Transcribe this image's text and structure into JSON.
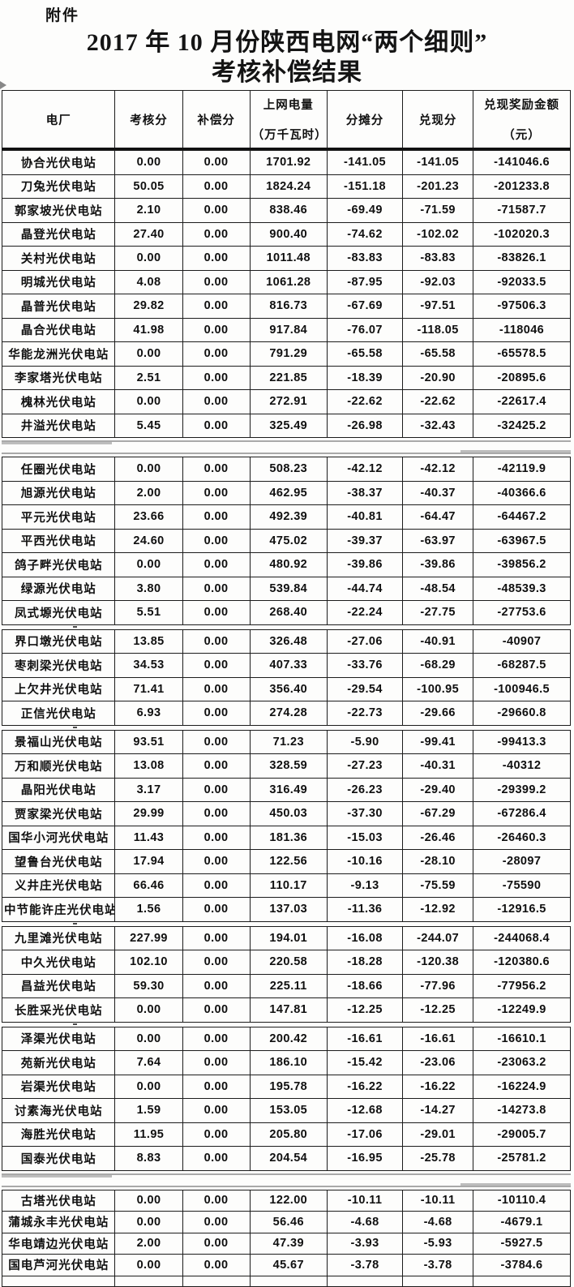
{
  "page": {
    "attachment": "附件",
    "title_line1": "2017 年 10 月份陕西电网“两个细则”",
    "title_line2": "考核补偿结果"
  },
  "table": {
    "headers": [
      {
        "line1": "电厂",
        "line2": ""
      },
      {
        "line1": "考核分",
        "line2": ""
      },
      {
        "line1": "补偿分",
        "line2": ""
      },
      {
        "line1": "上网电量",
        "line2": "（万千瓦时）"
      },
      {
        "line1": "分摊分",
        "line2": ""
      },
      {
        "line1": "兑现分",
        "line2": ""
      },
      {
        "line1": "兑现奖励金额",
        "line2": "（元）"
      }
    ],
    "sections": [
      {
        "break_before": "none",
        "rows": [
          {
            "plant": "协合光伏电站",
            "values": [
              "0.00",
              "0.00",
              "1701.92",
              "-141.05",
              "-141.05",
              "-141046.6"
            ]
          },
          {
            "plant": "刀兔光伏电站",
            "values": [
              "50.05",
              "0.00",
              "1824.24",
              "-151.18",
              "-201.23",
              "-201233.8"
            ]
          },
          {
            "plant": "郭家坡光伏电站",
            "values": [
              "2.10",
              "0.00",
              "838.46",
              "-69.49",
              "-71.59",
              "-71587.7"
            ]
          },
          {
            "plant": "晶登光伏电站",
            "values": [
              "27.40",
              "0.00",
              "900.40",
              "-74.62",
              "-102.02",
              "-102020.3"
            ]
          },
          {
            "plant": "关村光伏电站",
            "values": [
              "0.00",
              "0.00",
              "1011.48",
              "-83.83",
              "-83.83",
              "-83826.1"
            ]
          },
          {
            "plant": "明城光伏电站",
            "values": [
              "4.08",
              "0.00",
              "1061.28",
              "-87.95",
              "-92.03",
              "-92033.5"
            ]
          },
          {
            "plant": "晶普光伏电站",
            "values": [
              "29.82",
              "0.00",
              "816.73",
              "-67.69",
              "-97.51",
              "-97506.3"
            ]
          },
          {
            "plant": "晶合光伏电站",
            "values": [
              "41.98",
              "0.00",
              "917.84",
              "-76.07",
              "-118.05",
              "-118046"
            ]
          },
          {
            "plant": "华能龙洲光伏电站",
            "values": [
              "0.00",
              "0.00",
              "791.29",
              "-65.58",
              "-65.58",
              "-65578.5"
            ]
          },
          {
            "plant": "李家塔光伏电站",
            "values": [
              "2.51",
              "0.00",
              "221.85",
              "-18.39",
              "-20.90",
              "-20895.6"
            ]
          },
          {
            "plant": "槐林光伏电站",
            "values": [
              "0.00",
              "0.00",
              "272.91",
              "-22.62",
              "-22.62",
              "-22617.4"
            ]
          },
          {
            "plant": "井溢光伏电站",
            "values": [
              "5.45",
              "0.00",
              "325.49",
              "-26.98",
              "-32.43",
              "-32425.2"
            ]
          }
        ]
      },
      {
        "break_before": "page",
        "rows": [
          {
            "plant": "任圈光伏电站",
            "values": [
              "0.00",
              "0.00",
              "508.23",
              "-42.12",
              "-42.12",
              "-42119.9"
            ]
          },
          {
            "plant": "旭源光伏电站",
            "values": [
              "2.00",
              "0.00",
              "462.95",
              "-38.37",
              "-40.37",
              "-40366.6"
            ]
          },
          {
            "plant": "平元光伏电站",
            "values": [
              "23.66",
              "0.00",
              "492.39",
              "-40.81",
              "-64.47",
              "-64467.2"
            ]
          },
          {
            "plant": "平西光伏电站",
            "values": [
              "24.60",
              "0.00",
              "475.02",
              "-39.37",
              "-63.97",
              "-63967.5"
            ]
          },
          {
            "plant": "鸽子畔光伏电站",
            "values": [
              "0.00",
              "0.00",
              "480.92",
              "-39.86",
              "-39.86",
              "-39856.2"
            ]
          },
          {
            "plant": "绿源光伏电站",
            "values": [
              "3.80",
              "0.00",
              "539.84",
              "-44.74",
              "-48.54",
              "-48539.3"
            ]
          },
          {
            "plant": "凤式塬光伏电站",
            "values": [
              "5.51",
              "0.00",
              "268.40",
              "-22.24",
              "-27.75",
              "-27753.6"
            ]
          }
        ]
      },
      {
        "break_before": "split",
        "rows": [
          {
            "plant": "界口墩光伏电站",
            "values": [
              "13.85",
              "0.00",
              "326.48",
              "-27.06",
              "-40.91",
              "-40907"
            ]
          },
          {
            "plant": "枣刺梁光伏电站",
            "values": [
              "34.53",
              "0.00",
              "407.33",
              "-33.76",
              "-68.29",
              "-68287.5"
            ]
          },
          {
            "plant": "上欠井光伏电站",
            "values": [
              "71.41",
              "0.00",
              "356.40",
              "-29.54",
              "-100.95",
              "-100946.5"
            ]
          },
          {
            "plant": "正信光伏电站",
            "values": [
              "6.93",
              "0.00",
              "274.28",
              "-22.73",
              "-29.66",
              "-29660.8"
            ]
          }
        ]
      },
      {
        "break_before": "split",
        "rows": [
          {
            "plant": "景福山光伏电站",
            "values": [
              "93.51",
              "0.00",
              "71.23",
              "-5.90",
              "-99.41",
              "-99413.3"
            ]
          },
          {
            "plant": "万和顺光伏电站",
            "values": [
              "13.08",
              "0.00",
              "328.59",
              "-27.23",
              "-40.31",
              "-40312"
            ]
          },
          {
            "plant": "晶阳光伏电站",
            "values": [
              "3.17",
              "0.00",
              "316.49",
              "-26.23",
              "-29.40",
              "-29399.2"
            ]
          },
          {
            "plant": "贾家梁光伏电站",
            "values": [
              "29.99",
              "0.00",
              "450.03",
              "-37.30",
              "-67.29",
              "-67286.4"
            ]
          },
          {
            "plant": "国华小河光伏电站",
            "values": [
              "11.43",
              "0.00",
              "181.36",
              "-15.03",
              "-26.46",
              "-26460.3"
            ]
          },
          {
            "plant": "望鲁台光伏电站",
            "values": [
              "17.94",
              "0.00",
              "122.56",
              "-10.16",
              "-28.10",
              "-28097"
            ]
          },
          {
            "plant": "义井庄光伏电站",
            "values": [
              "66.46",
              "0.00",
              "110.17",
              "-9.13",
              "-75.59",
              "-75590"
            ]
          },
          {
            "plant": "中节能许庄光伏电站",
            "values": [
              "1.56",
              "0.00",
              "137.03",
              "-11.36",
              "-12.92",
              "-12916.5"
            ]
          }
        ]
      },
      {
        "break_before": "split",
        "rows": [
          {
            "plant": "九里滩光伏电站",
            "values": [
              "227.99",
              "0.00",
              "194.01",
              "-16.08",
              "-244.07",
              "-244068.4"
            ]
          },
          {
            "plant": "中久光伏电站",
            "values": [
              "102.10",
              "0.00",
              "220.58",
              "-18.28",
              "-120.38",
              "-120380.6"
            ]
          },
          {
            "plant": "昌益光伏电站",
            "values": [
              "59.30",
              "0.00",
              "225.11",
              "-18.66",
              "-77.96",
              "-77956.2"
            ]
          },
          {
            "plant": "长胜采光伏电站",
            "values": [
              "0.00",
              "0.00",
              "147.81",
              "-12.25",
              "-12.25",
              "-12249.9"
            ]
          }
        ]
      },
      {
        "break_before": "split",
        "rows": [
          {
            "plant": "泽渠光伏电站",
            "values": [
              "0.00",
              "0.00",
              "200.42",
              "-16.61",
              "-16.61",
              "-16610.1"
            ]
          },
          {
            "plant": "苑新光伏电站",
            "values": [
              "7.64",
              "0.00",
              "186.10",
              "-15.42",
              "-23.06",
              "-23063.2"
            ]
          },
          {
            "plant": "岩渠光伏电站",
            "values": [
              "0.00",
              "0.00",
              "195.78",
              "-16.22",
              "-16.22",
              "-16224.9"
            ]
          },
          {
            "plant": "讨素海光伏电站",
            "values": [
              "1.59",
              "0.00",
              "153.05",
              "-12.68",
              "-14.27",
              "-14273.8"
            ]
          },
          {
            "plant": "海胜光伏电站",
            "values": [
              "11.95",
              "0.00",
              "205.80",
              "-17.06",
              "-29.01",
              "-29005.7"
            ]
          },
          {
            "plant": "国泰光伏电站",
            "values": [
              "8.83",
              "0.00",
              "204.54",
              "-16.95",
              "-25.78",
              "-25781.2"
            ]
          }
        ]
      },
      {
        "break_before": "page",
        "compact": true,
        "stub_after": true,
        "rows": [
          {
            "plant": "古塔光伏电站",
            "values": [
              "0.00",
              "0.00",
              "122.00",
              "-10.11",
              "-10.11",
              "-10110.4"
            ]
          },
          {
            "plant": "蒲城永丰光伏电站",
            "values": [
              "0.00",
              "0.00",
              "56.46",
              "-4.68",
              "-4.68",
              "-4679.1"
            ]
          },
          {
            "plant": "华电靖边光伏电站",
            "values": [
              "2.00",
              "0.00",
              "47.39",
              "-3.93",
              "-5.93",
              "-5927.5"
            ]
          },
          {
            "plant": "国电芦河光伏电站",
            "values": [
              "0.00",
              "0.00",
              "45.67",
              "-3.78",
              "-3.78",
              "-3784.6"
            ]
          }
        ]
      }
    ]
  }
}
